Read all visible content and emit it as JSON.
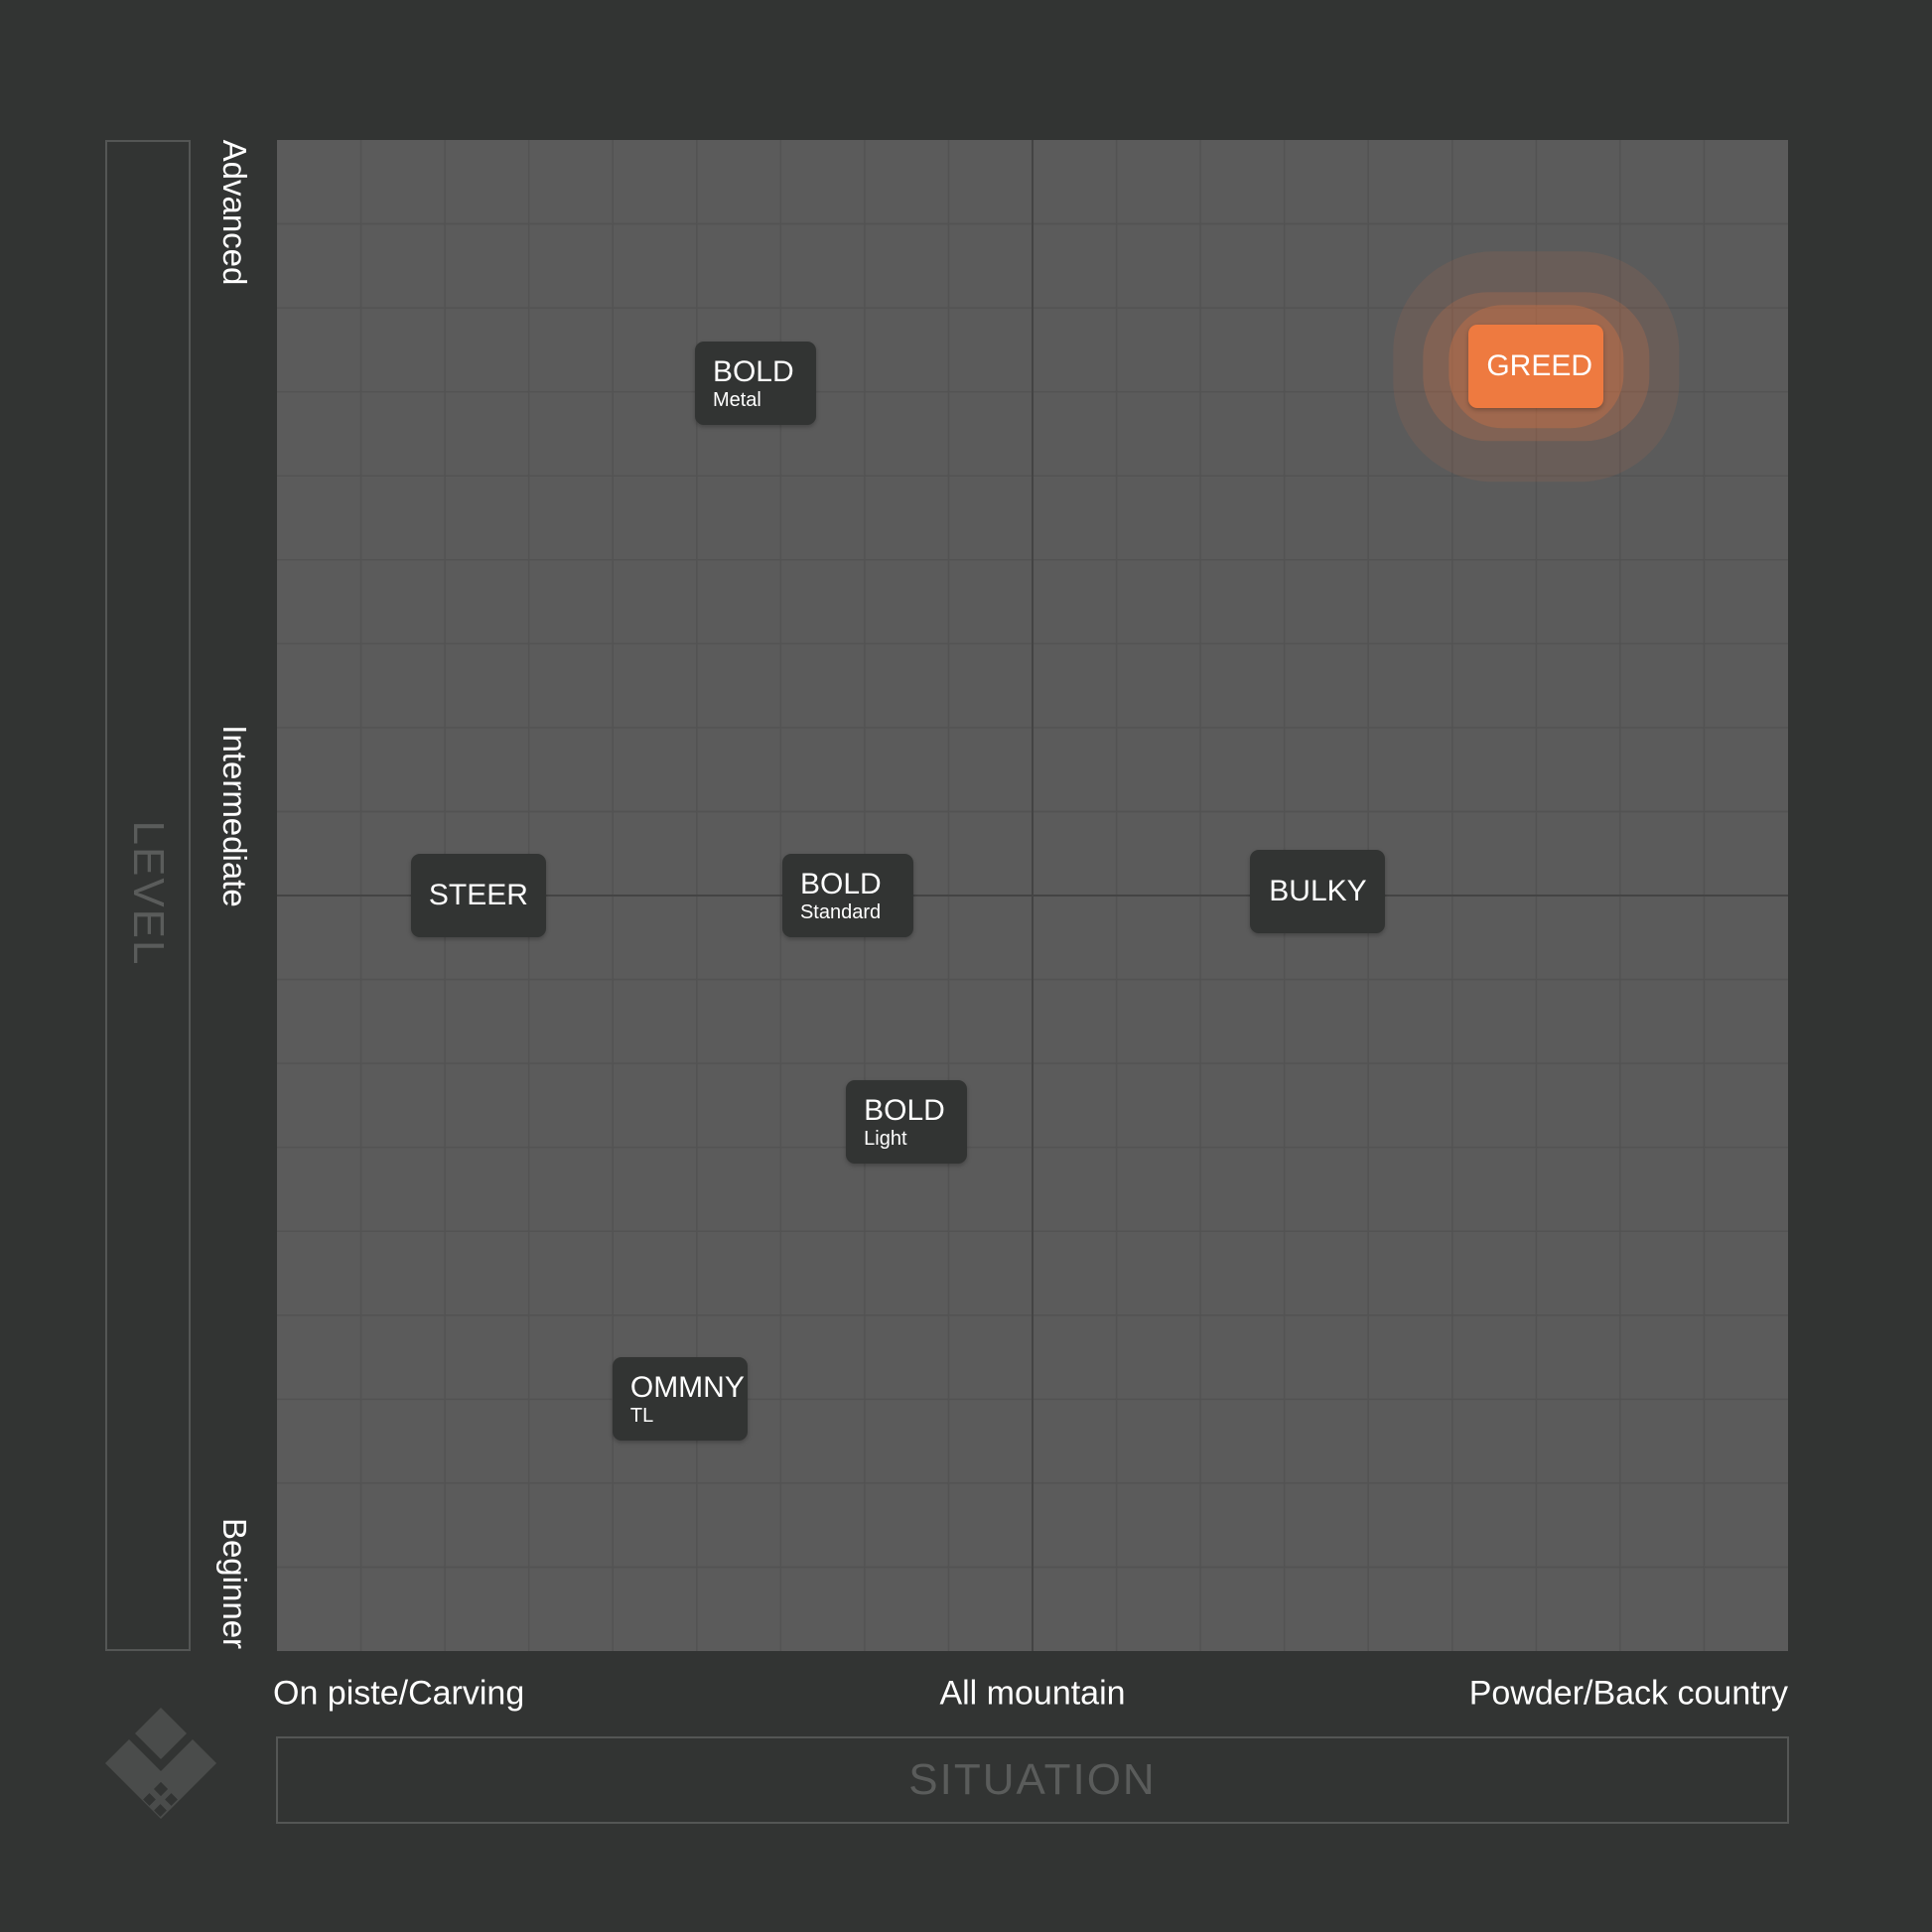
{
  "chart_data": {
    "type": "scatter",
    "xlabel": "SITUATION",
    "ylabel": "LEVEL",
    "xlim": [
      0,
      18
    ],
    "ylim": [
      0,
      18
    ],
    "grid": true,
    "x_ticks": [
      {
        "value": 0,
        "label": "On piste/Carving"
      },
      {
        "value": 9,
        "label": "All mountain"
      },
      {
        "value": 18,
        "label": "Powder/Back country"
      }
    ],
    "y_ticks": [
      {
        "value": 0,
        "label": "Beginner"
      },
      {
        "value": 9,
        "label": "Intermediate"
      },
      {
        "value": 18,
        "label": "Advanced"
      }
    ],
    "points": [
      {
        "name": "BOLD",
        "sub": "Metal",
        "x": 5.7,
        "y": 15.1
      },
      {
        "name": "GREED",
        "sub": "",
        "x": 15.0,
        "y": 15.3,
        "highlight": true
      },
      {
        "name": "STEER",
        "sub": "",
        "x": 2.4,
        "y": 9.0
      },
      {
        "name": "BOLD",
        "sub": "Standard",
        "x": 6.8,
        "y": 9.0
      },
      {
        "name": "BULKY",
        "sub": "",
        "x": 12.4,
        "y": 9.05
      },
      {
        "name": "BOLD",
        "sub": "Light",
        "x": 7.5,
        "y": 6.3
      },
      {
        "name": "OMMNY",
        "sub": "TL",
        "x": 4.8,
        "y": 3.0
      }
    ],
    "colors": {
      "background": "#323433",
      "plot": "#5b5b5b",
      "grid": "#535353",
      "center_line": "#444444",
      "chip": "#323433",
      "highlight": "#ee7a40"
    }
  }
}
